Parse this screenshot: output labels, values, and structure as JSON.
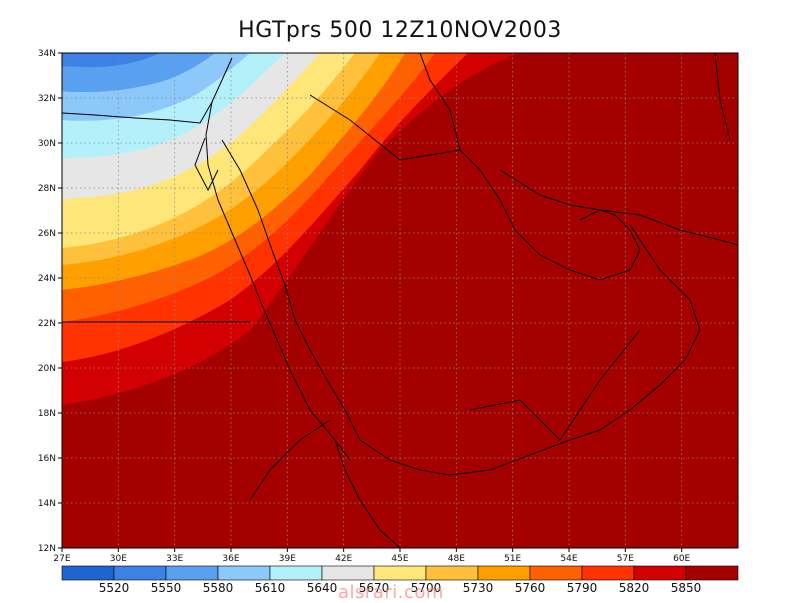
{
  "title": "HGTprs 500  12Z10NOV2003",
  "watermark": "alsrari.com",
  "map": {
    "lon_range": [
      27,
      63
    ],
    "lat_range": [
      12,
      34
    ],
    "lon_ticks": [
      "27E",
      "30E",
      "33E",
      "36E",
      "39E",
      "42E",
      "45E",
      "48E",
      "51E",
      "54E",
      "57E",
      "60E"
    ],
    "lat_ticks": [
      "12N",
      "14N",
      "16N",
      "18N",
      "20N",
      "22N",
      "24N",
      "26N",
      "28N",
      "30N",
      "32N",
      "34N"
    ],
    "grid": "dotted"
  },
  "colorbar": {
    "levels": [
      "5520",
      "5550",
      "5580",
      "5610",
      "5640",
      "5670",
      "5700",
      "5730",
      "5760",
      "5790",
      "5820",
      "5850"
    ],
    "colors": [
      "#1e64d2",
      "#3c82e6",
      "#5aa0f0",
      "#8cc8fa",
      "#b4f0fa",
      "#e6e6e6",
      "#ffe678",
      "#ffc03c",
      "#ffa000",
      "#ff6000",
      "#ff3200",
      "#d20000",
      "#a50000"
    ]
  }
}
